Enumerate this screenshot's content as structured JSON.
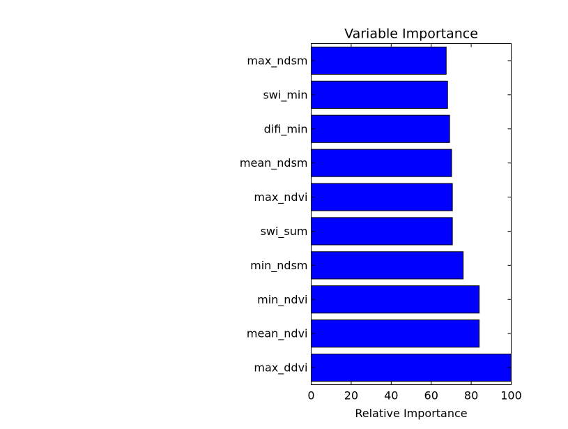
{
  "chart_data": {
    "type": "bar",
    "orientation": "horizontal",
    "title": "Variable Importance",
    "xlabel": "Relative Importance",
    "ylabel": "",
    "categories": [
      "max_ndsm",
      "swi_min",
      "difi_min",
      "mean_ndsm",
      "max_ndvi",
      "swi_sum",
      "min_ndsm",
      "min_ndvi",
      "mean_ndvi",
      "max_ddvi"
    ],
    "values": [
      67.5,
      68.2,
      69.2,
      70.2,
      70.6,
      70.6,
      76.0,
      84.0,
      84.0,
      100.0
    ],
    "xlim": [
      0,
      100
    ],
    "xticks": [
      "0",
      "20",
      "40",
      "60",
      "80",
      "100"
    ],
    "grid": false,
    "bar_color": "#0000ff",
    "edge_color": "#000000"
  }
}
